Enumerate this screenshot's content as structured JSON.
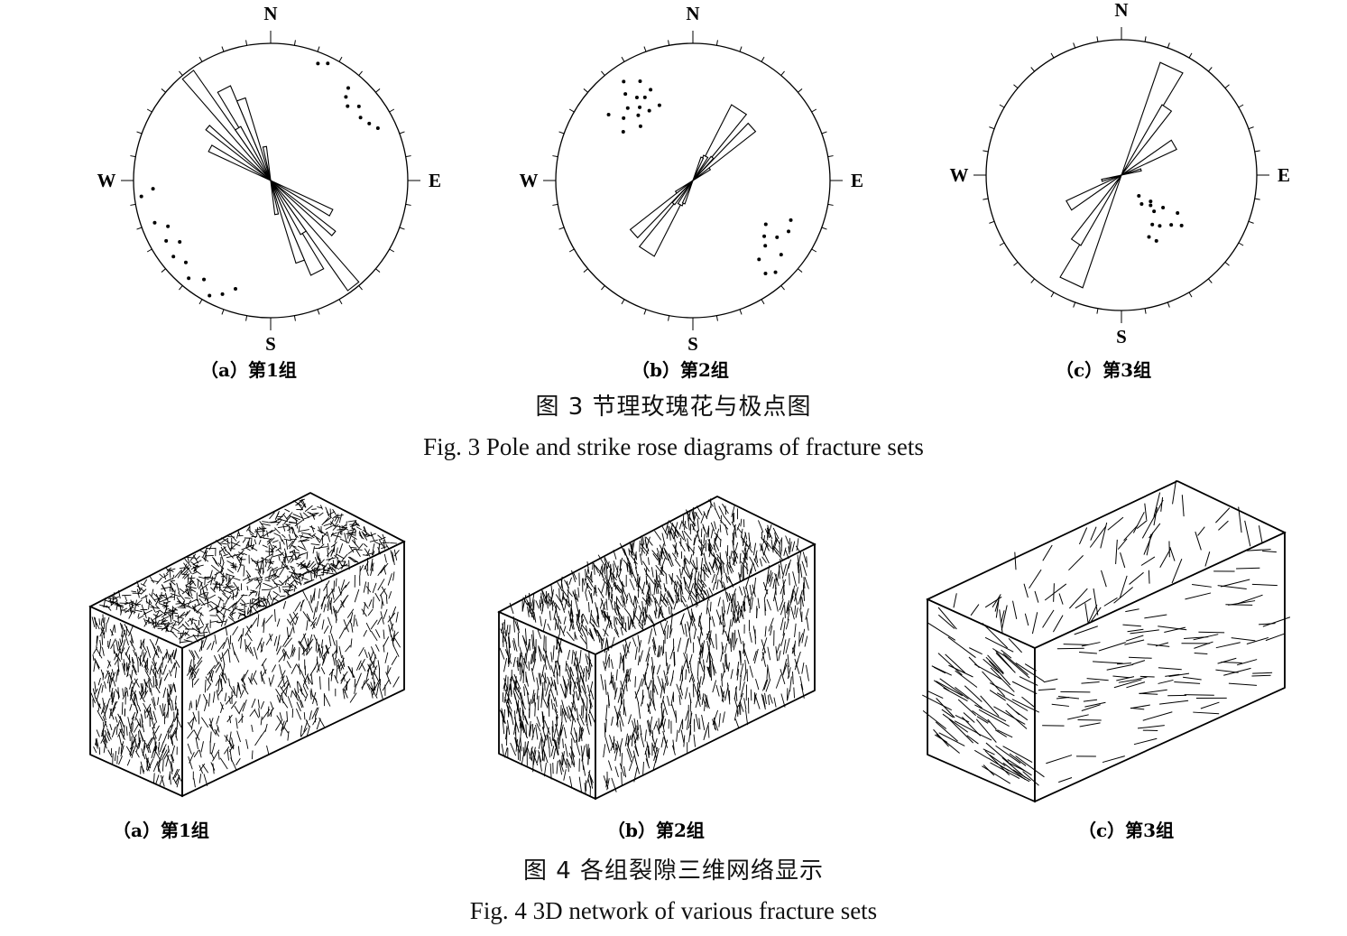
{
  "figure3": {
    "caption_cn": "图 3  节理玫瑰花与极点图",
    "caption_en": "Fig. 3 Pole and strike rose diagrams of fracture sets",
    "compass": {
      "n": "N",
      "e": "E",
      "s": "S",
      "w": "W"
    },
    "panels": [
      {
        "label": "（a）第1组"
      },
      {
        "label": "（b）第2组"
      },
      {
        "label": "（c）第3组"
      }
    ]
  },
  "figure4": {
    "caption_cn": "图 4  各组裂隙三维网络显示",
    "caption_en": "Fig. 4 3D network of various fracture sets",
    "panels": [
      {
        "label": "（a）第1组"
      },
      {
        "label": "（b）第2组"
      },
      {
        "label": "（c）第3组"
      }
    ]
  }
}
